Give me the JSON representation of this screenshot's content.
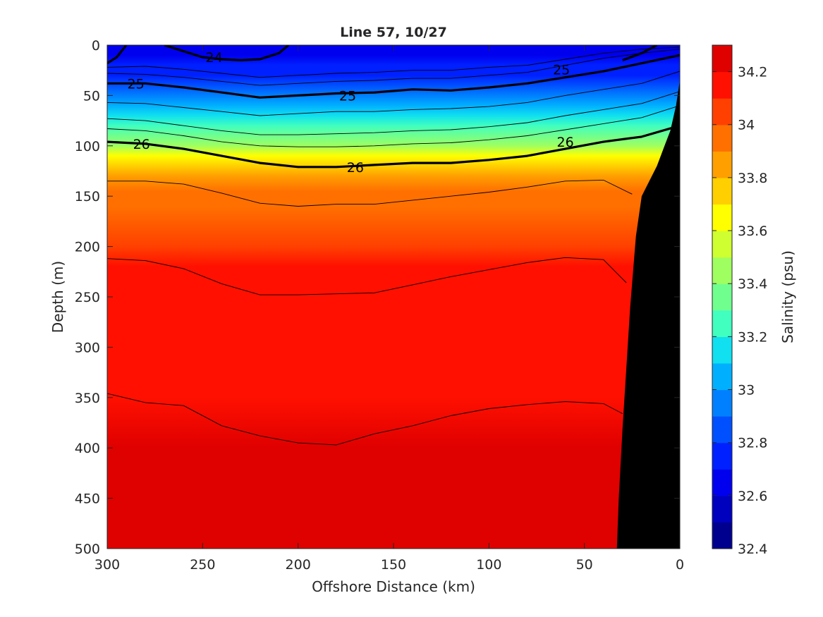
{
  "chart_data": {
    "type": "heatmap",
    "title": "Line 57, 10/27",
    "xlabel": "Offshore Distance (km)",
    "ylabel": "Depth (m)",
    "colorbar_label": "Salinity (psu)",
    "xlim": [
      300,
      0
    ],
    "ylim": [
      0,
      500
    ],
    "x_reversed": true,
    "y_reversed": true,
    "xticks": [
      300,
      250,
      200,
      150,
      100,
      50,
      0
    ],
    "yticks": [
      0,
      50,
      100,
      150,
      200,
      250,
      300,
      350,
      400,
      450,
      500
    ],
    "xtick_labels": [
      "300",
      "250",
      "200",
      "150",
      "100",
      "50",
      "0"
    ],
    "ytick_labels": [
      "0",
      "50",
      "100",
      "150",
      "200",
      "250",
      "300",
      "350",
      "400",
      "450",
      "500"
    ],
    "colorbar": {
      "range": [
        32.4,
        34.3
      ],
      "levels": [
        32.4,
        32.5,
        32.6,
        32.7,
        32.8,
        32.9,
        33.0,
        33.1,
        33.2,
        33.3,
        33.4,
        33.5,
        33.6,
        33.7,
        33.8,
        33.9,
        34.0,
        34.1,
        34.2,
        34.3
      ],
      "colors": [
        "#00008f",
        "#0000bf",
        "#0000ef",
        "#0020ff",
        "#0050ff",
        "#0080ff",
        "#00b0ff",
        "#10e0ef",
        "#40ffbf",
        "#70ff8f",
        "#9fff60",
        "#cfff30",
        "#ffff00",
        "#ffcf00",
        "#ff9f00",
        "#ff7000",
        "#ff4000",
        "#ff1000",
        "#df0000",
        "#af0000"
      ],
      "ticks": [
        32.4,
        32.6,
        32.8,
        33.0,
        33.2,
        33.4,
        33.6,
        33.8,
        34.0,
        34.2
      ],
      "tick_labels": [
        "32.4",
        "32.6",
        "32.8",
        "33",
        "33.2",
        "33.4",
        "33.6",
        "33.8",
        "34",
        "34.2"
      ]
    },
    "salinity_profile": {
      "depth": [
        0,
        10,
        20,
        30,
        40,
        50,
        60,
        70,
        80,
        90,
        100,
        110,
        120,
        130,
        145,
        160,
        200,
        220,
        260,
        300,
        350,
        400,
        430,
        500
      ],
      "salinity": [
        32.65,
        32.65,
        32.7,
        32.75,
        32.8,
        32.9,
        33.0,
        33.1,
        33.2,
        33.3,
        33.45,
        33.6,
        33.7,
        33.8,
        33.9,
        33.95,
        34.03,
        34.1,
        34.13,
        34.16,
        34.18,
        34.2,
        34.21,
        34.23
      ]
    },
    "density_contours": [
      {
        "label": "24",
        "x": [
          270,
          260,
          250,
          240,
          230,
          220,
          210,
          205
        ],
        "depth": [
          0,
          6,
          12,
          14,
          15,
          14,
          8,
          0
        ]
      },
      {
        "label": "24",
        "x": [
          300,
          295,
          290
        ],
        "depth": [
          18,
          12,
          0
        ]
      },
      {
        "label": "24",
        "x": [
          30,
          20,
          12
        ],
        "depth": [
          15,
          8,
          0
        ]
      },
      {
        "label": "25",
        "x": [
          300,
          280,
          260,
          240,
          220,
          200,
          180,
          160,
          140,
          120,
          100,
          80,
          60,
          40,
          20,
          0
        ],
        "depth": [
          38,
          38,
          42,
          47,
          52,
          50,
          48,
          47,
          44,
          45,
          42,
          38,
          32,
          26,
          18,
          10
        ]
      },
      {
        "label": "26",
        "x": [
          300,
          280,
          260,
          240,
          220,
          200,
          180,
          160,
          140,
          120,
          100,
          80,
          60,
          40,
          20,
          0
        ],
        "depth": [
          96,
          98,
          103,
          110,
          117,
          121,
          121,
          119,
          117,
          117,
          114,
          110,
          103,
          96,
          91,
          80
        ]
      },
      {
        "label": "",
        "x": [
          300,
          280,
          260,
          240,
          220,
          200,
          180,
          160,
          140,
          120,
          100,
          80,
          60,
          40,
          20,
          0
        ],
        "depth": [
          22,
          21,
          24,
          28,
          32,
          30,
          28,
          27,
          25,
          25,
          22,
          20,
          14,
          8,
          4,
          2
        ]
      },
      {
        "label": "",
        "x": [
          300,
          280,
          260,
          240,
          220,
          200,
          180,
          160,
          140,
          120,
          100,
          80,
          60,
          40,
          20,
          0
        ],
        "depth": [
          28,
          29,
          32,
          36,
          40,
          38,
          36,
          35,
          33,
          33,
          30,
          27,
          20,
          13,
          8,
          4
        ]
      },
      {
        "label": "",
        "x": [
          300,
          280,
          260,
          240,
          220,
          200,
          180,
          160,
          140,
          120,
          100,
          80,
          60,
          40,
          20,
          0
        ],
        "depth": [
          57,
          58,
          62,
          66,
          70,
          68,
          66,
          66,
          64,
          63,
          61,
          57,
          50,
          44,
          38,
          26
        ]
      },
      {
        "label": "",
        "x": [
          300,
          280,
          260,
          240,
          220,
          200,
          180,
          160,
          140,
          120,
          100,
          80,
          60,
          40,
          20,
          0
        ],
        "depth": [
          73,
          75,
          80,
          85,
          89,
          89,
          88,
          87,
          85,
          84,
          81,
          77,
          70,
          64,
          58,
          46
        ]
      },
      {
        "label": "",
        "x": [
          300,
          280,
          260,
          240,
          220,
          200,
          180,
          160,
          140,
          120,
          100,
          80,
          60,
          40,
          20,
          0
        ],
        "depth": [
          83,
          85,
          90,
          96,
          100,
          101,
          101,
          100,
          98,
          97,
          94,
          90,
          84,
          78,
          72,
          60
        ]
      },
      {
        "label": "",
        "x": [
          300,
          280,
          260,
          240,
          220,
          200,
          180,
          160,
          140,
          120,
          100,
          80,
          60,
          40,
          25
        ],
        "depth": [
          135,
          135,
          138,
          147,
          157,
          160,
          158,
          158,
          154,
          150,
          146,
          141,
          135,
          134,
          148
        ]
      },
      {
        "label": "",
        "x": [
          300,
          280,
          260,
          240,
          220,
          200,
          180,
          160,
          140,
          120,
          100,
          80,
          60,
          40,
          28
        ],
        "depth": [
          212,
          214,
          222,
          237,
          248,
          248,
          247,
          246,
          238,
          230,
          223,
          216,
          211,
          213,
          236
        ]
      },
      {
        "label": "",
        "x": [
          300,
          280,
          260,
          240,
          220,
          200,
          180,
          160,
          140,
          120,
          100,
          80,
          60,
          40,
          30
        ],
        "depth": [
          346,
          355,
          358,
          378,
          388,
          395,
          397,
          386,
          378,
          368,
          361,
          357,
          354,
          356,
          366
        ]
      }
    ],
    "bathymetry": {
      "x": [
        0,
        2,
        5,
        8,
        12,
        16,
        20,
        23,
        26,
        28,
        30,
        32,
        33
      ],
      "depth": [
        35,
        60,
        85,
        100,
        120,
        135,
        150,
        190,
        260,
        320,
        380,
        450,
        500
      ],
      "color": "#000000"
    }
  }
}
